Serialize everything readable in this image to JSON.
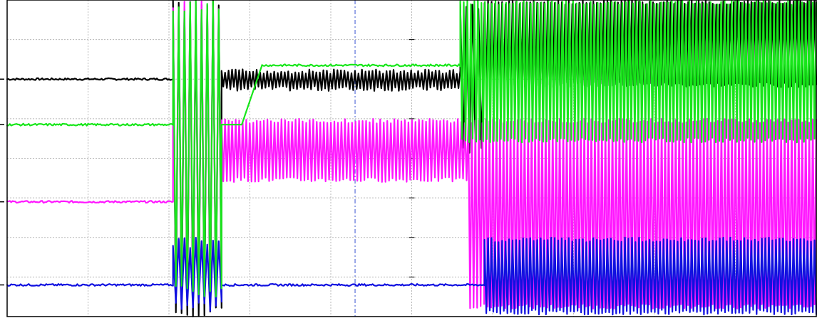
{
  "chart_data": {
    "type": "line",
    "title": "",
    "xlabel": "",
    "ylabel": "",
    "grid": true,
    "divisions": {
      "x": 10,
      "y": 8
    },
    "xlim": [
      0,
      10
    ],
    "ylim": [
      0,
      8
    ],
    "cursor_x": 4.3,
    "colors": {
      "black": "#000000",
      "green": "#17e61a",
      "magenta": "#ff17ff",
      "blue": "#1010e0",
      "grid": "#b8b8b8",
      "cursor": "#5a6fd8"
    },
    "series": [
      {
        "key": "black",
        "color": "#000000",
        "baseline": 6.0,
        "segments": [
          {
            "x": [
              0.0,
              2.05
            ],
            "mode": "flat",
            "level": 6.0
          },
          {
            "x": [
              2.05,
              2.65
            ],
            "mode": "burst",
            "low": 0.0,
            "high": 8.0
          },
          {
            "x": [
              2.65,
              5.6
            ],
            "mode": "ripple",
            "low": 5.7,
            "high": 6.25
          },
          {
            "x": [
              5.6,
              5.9
            ],
            "mode": "burst",
            "low": 4.1,
            "high": 8.0
          },
          {
            "x": [
              5.9,
              10.0
            ],
            "mode": "ripple",
            "low": 5.8,
            "high": 8.0
          }
        ]
      },
      {
        "key": "magenta",
        "color": "#ff17ff",
        "baseline": 2.9,
        "segments": [
          {
            "x": [
              0.0,
              2.05
            ],
            "mode": "flat",
            "level": 2.9
          },
          {
            "x": [
              2.05,
              2.65
            ],
            "mode": "burst",
            "low": 0.55,
            "high": 8.0
          },
          {
            "x": [
              2.65,
              5.7
            ],
            "mode": "ripple",
            "low": 3.4,
            "high": 5.0
          },
          {
            "x": [
              5.7,
              10.0
            ],
            "mode": "ripple",
            "low": 0.2,
            "high": 5.0
          }
        ]
      },
      {
        "key": "blue",
        "color": "#1010e0",
        "baseline": 0.8,
        "segments": [
          {
            "x": [
              0.0,
              2.05
            ],
            "mode": "flat",
            "level": 0.8
          },
          {
            "x": [
              2.05,
              2.65
            ],
            "mode": "burst",
            "low": 0.1,
            "high": 2.0
          },
          {
            "x": [
              2.65,
              5.9
            ],
            "mode": "flat",
            "level": 0.8
          },
          {
            "x": [
              5.9,
              10.0
            ],
            "mode": "ripple",
            "low": 0.05,
            "high": 2.0
          }
        ]
      },
      {
        "key": "green",
        "color": "#17e61a",
        "baseline": 4.85,
        "segments": [
          {
            "x": [
              0.0,
              2.05
            ],
            "mode": "flat",
            "level": 4.85
          },
          {
            "x": [
              2.05,
              2.65
            ],
            "mode": "burst",
            "low": 0.5,
            "high": 8.0
          },
          {
            "x": [
              2.65,
              2.9
            ],
            "mode": "ramp",
            "from": 4.85,
            "to": 4.85
          },
          {
            "x": [
              2.9,
              3.15
            ],
            "mode": "ramp",
            "from": 4.85,
            "to": 6.35
          },
          {
            "x": [
              3.15,
              5.6
            ],
            "mode": "flat",
            "level": 6.35
          },
          {
            "x": [
              5.6,
              10.0
            ],
            "mode": "ripple",
            "low": 4.4,
            "high": 8.0
          }
        ]
      }
    ]
  }
}
